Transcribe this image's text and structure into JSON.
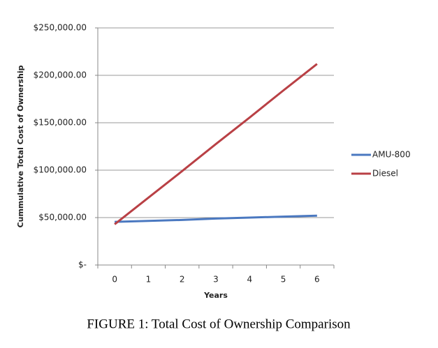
{
  "chart_data": {
    "type": "line",
    "y_label": "Cummulative Total Cost of Ownership",
    "x_label": "Years",
    "caption": "FIGURE 1: Total Cost of Ownership Comparison",
    "categories": [
      "0",
      "1",
      "2",
      "3",
      "4",
      "5",
      "6"
    ],
    "series": [
      {
        "name": "AMU-800",
        "color": "#4a78c0",
        "values": [
          45500,
          46500,
          47500,
          49000,
          50000,
          51000,
          52000
        ]
      },
      {
        "name": "Diesel",
        "color": "#b94045",
        "values": [
          43000,
          71000,
          99000,
          127500,
          155500,
          184000,
          212000
        ]
      }
    ],
    "ylim": [
      0,
      250000
    ],
    "yticks": [
      {
        "value": 0,
        "label": "$-"
      },
      {
        "value": 50000,
        "label": "$50,000.00"
      },
      {
        "value": 100000,
        "label": "$100,000.00"
      },
      {
        "value": 150000,
        "label": "$150,000.00"
      },
      {
        "value": 200000,
        "label": "$200,000.00"
      },
      {
        "value": 250000,
        "label": "$250,000.00"
      }
    ],
    "grid": true,
    "legend": "right"
  }
}
